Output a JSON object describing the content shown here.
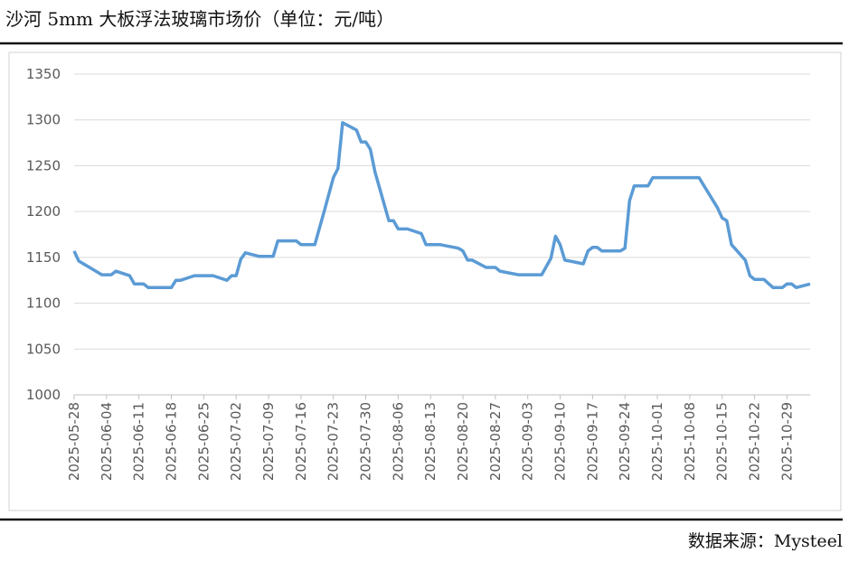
{
  "chart_data": {
    "type": "line",
    "title": "沙河 5mm 大板浮法玻璃市场价（单位：元/吨）",
    "source": "数据来源：Mysteel",
    "x": [
      "2025-05-28",
      "2025-05-29",
      "2025-06-03",
      "2025-06-05",
      "2025-06-06",
      "2025-06-09",
      "2025-06-10",
      "2025-06-12",
      "2025-06-13",
      "2025-06-18",
      "2025-06-19",
      "2025-06-20",
      "2025-06-23",
      "2025-06-27",
      "2025-06-30",
      "2025-07-01",
      "2025-07-02",
      "2025-07-03",
      "2025-07-04",
      "2025-07-07",
      "2025-07-10",
      "2025-07-11",
      "2025-07-15",
      "2025-07-16",
      "2025-07-19",
      "2025-07-21",
      "2025-07-23",
      "2025-07-24",
      "2025-07-25",
      "2025-07-28",
      "2025-07-29",
      "2025-07-30",
      "2025-07-31",
      "2025-08-01",
      "2025-08-04",
      "2025-08-05",
      "2025-08-06",
      "2025-08-08",
      "2025-08-11",
      "2025-08-12",
      "2025-08-15",
      "2025-08-19",
      "2025-08-20",
      "2025-08-21",
      "2025-08-22",
      "2025-08-25",
      "2025-08-27",
      "2025-08-28",
      "2025-09-01",
      "2025-09-06",
      "2025-09-08",
      "2025-09-09",
      "2025-09-10",
      "2025-09-11",
      "2025-09-13",
      "2025-09-15",
      "2025-09-16",
      "2025-09-17",
      "2025-09-18",
      "2025-09-19",
      "2025-09-23",
      "2025-09-24",
      "2025-09-25",
      "2025-09-26",
      "2025-09-29",
      "2025-09-30",
      "2025-10-10",
      "2025-10-14",
      "2025-10-15",
      "2025-10-16",
      "2025-10-17",
      "2025-10-20",
      "2025-10-21",
      "2025-10-22",
      "2025-10-24",
      "2025-10-26",
      "2025-10-28",
      "2025-10-29",
      "2025-10-30",
      "2025-10-31",
      "2025-11-03"
    ],
    "series": [
      {
        "name": "沙河 5mm 大板浮法玻璃市场价",
        "color": "#5b9bd5",
        "values": [
          1157,
          1146,
          1131,
          1131,
          1135,
          1130,
          1121,
          1121,
          1117,
          1117,
          1125,
          1125,
          1130,
          1130,
          1125,
          1130,
          1130,
          1148,
          1155,
          1151,
          1151,
          1168,
          1168,
          1164,
          1164,
          1200,
          1237,
          1247,
          1297,
          1289,
          1276,
          1276,
          1268,
          1243,
          1190,
          1190,
          1181,
          1181,
          1176,
          1164,
          1164,
          1160,
          1157,
          1147,
          1147,
          1139,
          1139,
          1135,
          1131,
          1131,
          1149,
          1173,
          1164,
          1147,
          1145,
          1143,
          1157,
          1161,
          1161,
          1157,
          1157,
          1160,
          1212,
          1228,
          1228,
          1237,
          1237,
          1204,
          1193,
          1190,
          1164,
          1147,
          1130,
          1126,
          1126,
          1117,
          1117,
          1121,
          1121,
          1117,
          1121
        ]
      }
    ],
    "xlim": [
      "2025-05-28",
      "2025-11-03"
    ],
    "xticks": [
      "2025-05-28",
      "2025-06-04",
      "2025-06-11",
      "2025-06-18",
      "2025-06-25",
      "2025-07-02",
      "2025-07-09",
      "2025-07-16",
      "2025-07-23",
      "2025-07-30",
      "2025-08-06",
      "2025-08-13",
      "2025-08-20",
      "2025-08-27",
      "2025-09-03",
      "2025-09-10",
      "2025-09-17",
      "2025-09-24",
      "2025-10-01",
      "2025-10-08",
      "2025-10-15",
      "2025-10-22",
      "2025-10-29"
    ],
    "ylim": [
      1000,
      1350
    ],
    "yticks": [
      1000,
      1050,
      1100,
      1150,
      1200,
      1250,
      1300,
      1350
    ],
    "grid": true
  }
}
